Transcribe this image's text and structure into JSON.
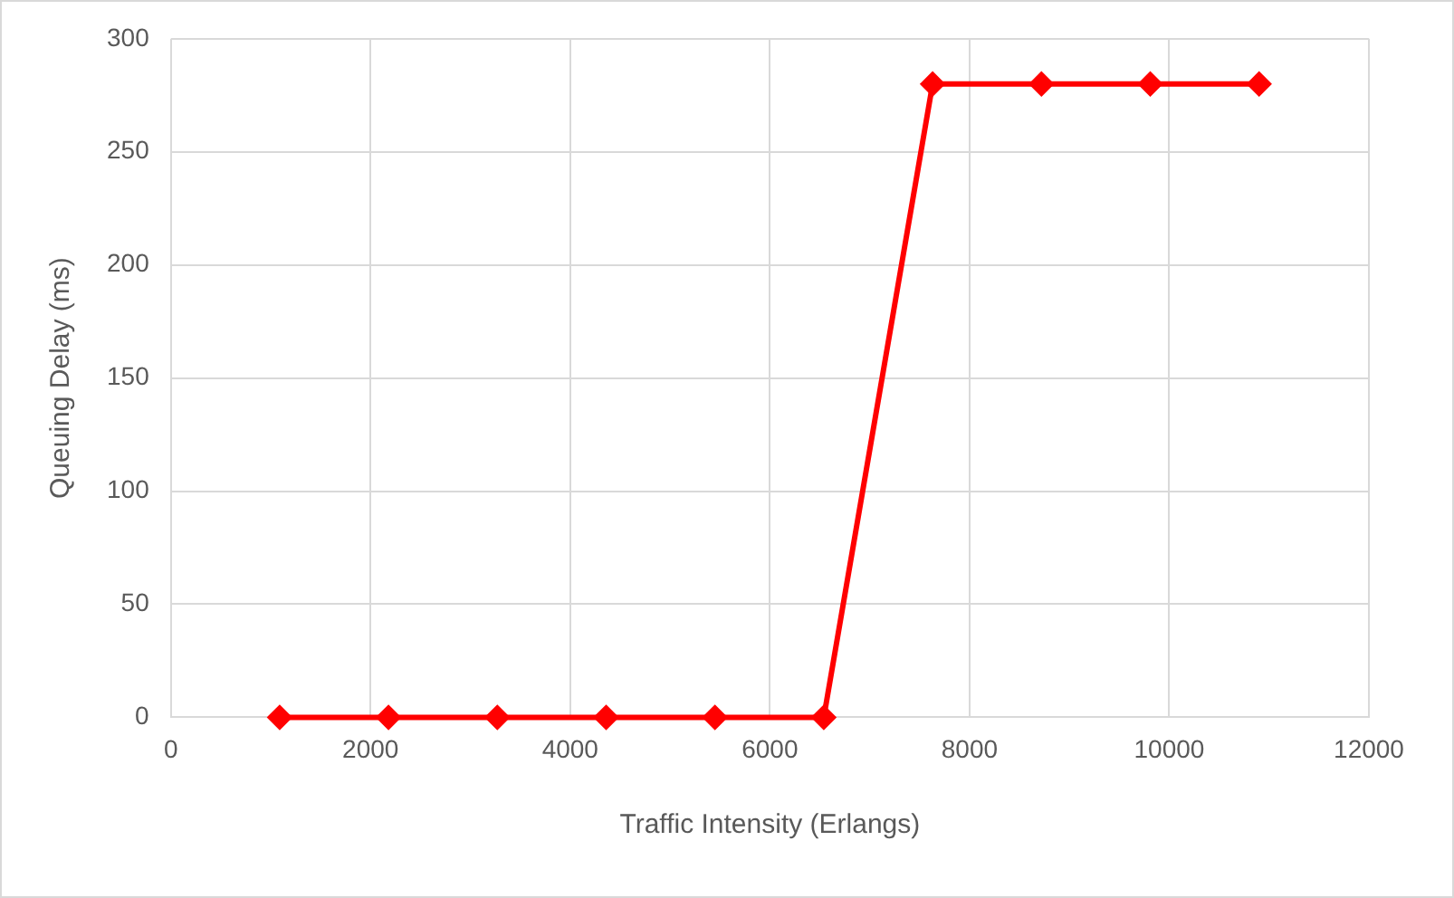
{
  "chart_data": {
    "type": "line",
    "xlabel": "Traffic Intensity (Erlangs)",
    "ylabel": "Queuing Delay (ms)",
    "x": [
      1090,
      2180,
      3270,
      4360,
      5450,
      6540,
      7630,
      8720,
      9810,
      10900
    ],
    "series": [
      {
        "color": "#ff0000",
        "values": [
          0,
          0,
          0,
          0,
          0,
          0,
          280,
          280,
          280,
          280
        ]
      }
    ],
    "xlim": [
      0,
      12000
    ],
    "xticks": [
      0,
      2000,
      4000,
      6000,
      8000,
      10000,
      12000
    ],
    "ylim": [
      0,
      300
    ],
    "yticks": [
      0,
      50,
      100,
      150,
      200,
      250,
      300
    ],
    "grid": true,
    "legend": false,
    "marker": "diamond",
    "line_style": "solid"
  }
}
